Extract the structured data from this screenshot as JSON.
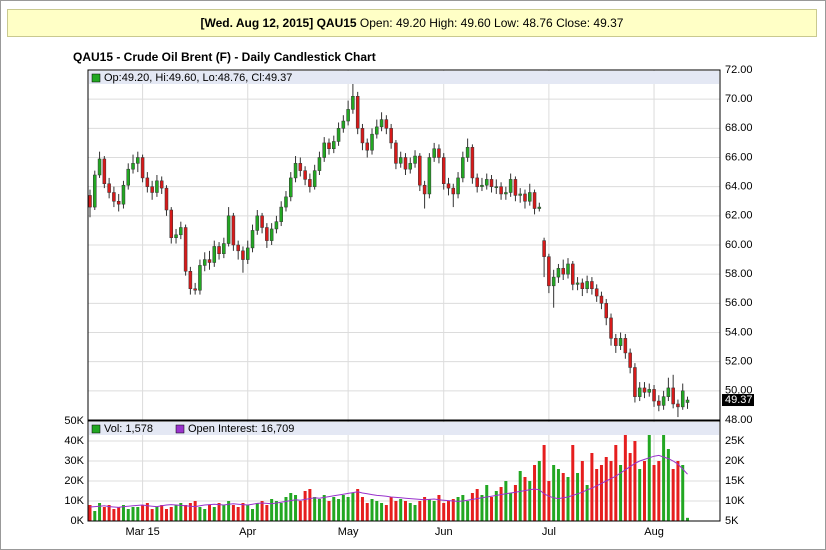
{
  "header": {
    "date": "[Wed. Aug 12, 2015] QAU15",
    "ohlc": "Open: 49.20 High: 49.60 Low: 48.76 Close: 49.37"
  },
  "chart_data": [
    {
      "type": "candlestick",
      "title": "QAU15 - Crude Oil Brent (F) - Daily Candlestick Chart",
      "legend_text": "Op:49.20, Hi:49.60, Lo:48.76, Cl:49.37",
      "up_color": "#22a722",
      "down_color": "#d61a1a",
      "grid": true,
      "ylim": [
        48,
        72
      ],
      "yticks": [
        {
          "value": 48,
          "label": "48.00"
        },
        {
          "value": 50,
          "label": "50.00"
        },
        {
          "value": 52,
          "label": "52.00"
        },
        {
          "value": 54,
          "label": "54.00"
        },
        {
          "value": 56,
          "label": "56.00"
        },
        {
          "value": 58,
          "label": "58.00"
        },
        {
          "value": 60,
          "label": "60.00"
        },
        {
          "value": 62,
          "label": "62.00"
        },
        {
          "value": 64,
          "label": "64.00"
        },
        {
          "value": 66,
          "label": "66.00"
        },
        {
          "value": 68,
          "label": "68.00"
        },
        {
          "value": 70,
          "label": "70.00"
        },
        {
          "value": 72,
          "label": "72.00"
        }
      ],
      "categories": [
        null,
        null,
        null,
        null,
        null,
        null,
        null,
        null,
        null,
        null,
        null,
        "Mar 15",
        null,
        null,
        null,
        null,
        null,
        null,
        null,
        null,
        null,
        null,
        null,
        null,
        null,
        null,
        null,
        null,
        null,
        null,
        null,
        null,
        null,
        "Apr",
        null,
        null,
        null,
        null,
        null,
        null,
        null,
        null,
        null,
        null,
        null,
        null,
        null,
        null,
        null,
        null,
        null,
        null,
        null,
        null,
        "May",
        null,
        null,
        null,
        null,
        null,
        null,
        null,
        null,
        null,
        null,
        null,
        null,
        null,
        null,
        null,
        null,
        null,
        null,
        null,
        "Jun",
        null,
        null,
        null,
        null,
        null,
        null,
        null,
        null,
        null,
        null,
        null,
        null,
        null,
        null,
        null,
        null,
        null,
        null,
        null,
        null,
        null,
        "Jul",
        null,
        null,
        null,
        null,
        null,
        null,
        null,
        null,
        null,
        null,
        null,
        null,
        null,
        null,
        null,
        null,
        null,
        null,
        null,
        null,
        null,
        "Aug",
        null,
        null,
        null,
        null,
        null,
        null,
        null
      ],
      "open": [
        63.4,
        62.6,
        64.8,
        65.9,
        64.2,
        63.6,
        63.0,
        62.8,
        64.1,
        65.2,
        65.6,
        66.0,
        64.6,
        64.0,
        63.6,
        64.4,
        63.9,
        62.4,
        60.5,
        60.7,
        61.2,
        58.2,
        57.0,
        56.9,
        58.6,
        59.0,
        58.8,
        59.9,
        59.4,
        60.1,
        62.0,
        60.0,
        59.6,
        59.0,
        59.8,
        61.0,
        62.0,
        61.2,
        60.3,
        61.1,
        61.6,
        62.6,
        63.3,
        64.6,
        65.6,
        65.1,
        64.5,
        64.0,
        65.1,
        66.0,
        67.0,
        66.6,
        67.1,
        68.0,
        68.5,
        69.3,
        70.2,
        68.0,
        67.0,
        66.5,
        67.6,
        68.1,
        68.6,
        68.0,
        67.0,
        65.6,
        66.0,
        65.2,
        65.6,
        66.1,
        64.1,
        63.5,
        66.0,
        66.6,
        66.0,
        64.2,
        63.9,
        63.5,
        64.6,
        66.0,
        66.7,
        64.6,
        64.0,
        64.1,
        64.5,
        64.0,
        64.0,
        63.5,
        63.6,
        64.5,
        63.4,
        63.5,
        63.0,
        63.6,
        62.5,
        60.3,
        59.2,
        57.2,
        57.8,
        58.4,
        58.0,
        58.7,
        57.3,
        57.4,
        57.0,
        57.5,
        57.0,
        56.5,
        56.0,
        55.0,
        53.6,
        53.1,
        53.6,
        52.6,
        51.6,
        49.6,
        50.2,
        49.9,
        50.1,
        49.3,
        49.0,
        49.6,
        50.2,
        49.1,
        48.9,
        49.2
      ],
      "high": [
        63.8,
        65.1,
        66.4,
        66.1,
        64.6,
        64.0,
        63.5,
        64.4,
        65.6,
        66.2,
        66.4,
        66.2,
        65.0,
        64.4,
        64.8,
        64.7,
        64.1,
        62.6,
        61.1,
        61.6,
        61.4,
        58.5,
        57.4,
        59.0,
        59.5,
        59.6,
        60.3,
        60.2,
        60.5,
        62.6,
        62.2,
        60.3,
        59.9,
        60.3,
        61.4,
        62.4,
        62.2,
        61.5,
        61.5,
        62.0,
        63.0,
        63.7,
        65.0,
        66.1,
        66.0,
        65.4,
        64.9,
        65.5,
        66.4,
        67.4,
        67.3,
        67.5,
        68.4,
        68.9,
        69.9,
        71.2,
        70.5,
        68.3,
        67.3,
        68.0,
        68.6,
        69.1,
        68.9,
        68.3,
        67.2,
        66.4,
        66.3,
        66.0,
        66.5,
        66.3,
        64.4,
        66.3,
        67.0,
        66.9,
        66.3,
        64.6,
        64.2,
        65.0,
        66.4,
        67.3,
        66.9,
        64.9,
        64.6,
        64.9,
        64.8,
        64.5,
        64.3,
        64.0,
        64.9,
        64.7,
        63.9,
        63.8,
        64.2,
        63.8,
        62.9,
        60.5,
        59.4,
        58.3,
        58.7,
        59.0,
        59.1,
        58.9,
        57.8,
        57.7,
        57.9,
        57.8,
        57.3,
        56.8,
        56.3,
        55.3,
        53.9,
        54.0,
        53.9,
        52.9,
        51.9,
        50.6,
        50.6,
        50.5,
        50.4,
        49.7,
        50.0,
        50.9,
        51.1,
        49.4,
        50.5,
        49.6
      ],
      "low": [
        61.9,
        62.4,
        64.6,
        63.9,
        63.2,
        62.6,
        62.3,
        62.5,
        63.8,
        64.9,
        65.0,
        64.3,
        63.6,
        63.1,
        63.3,
        63.5,
        62.0,
        60.1,
        60.1,
        60.4,
        57.9,
        56.6,
        56.6,
        56.6,
        58.2,
        58.3,
        58.5,
        59.0,
        59.1,
        59.9,
        59.6,
        59.0,
        58.1,
        58.7,
        59.5,
        60.7,
        60.8,
        59.8,
        60.0,
        60.8,
        61.3,
        62.3,
        63.0,
        64.3,
        64.7,
        64.1,
        63.6,
        63.8,
        64.8,
        65.7,
        66.2,
        66.3,
        66.8,
        67.7,
        68.2,
        69.0,
        67.6,
        66.5,
        66.0,
        66.2,
        67.3,
        67.8,
        67.6,
        66.6,
        65.2,
        65.3,
        64.8,
        64.9,
        65.3,
        63.7,
        62.5,
        63.2,
        65.7,
        65.6,
        63.8,
        63.4,
        62.6,
        63.2,
        64.3,
        65.7,
        64.2,
        63.6,
        63.7,
        63.8,
        63.6,
        63.5,
        63.1,
        63.1,
        63.3,
        63.0,
        62.9,
        62.5,
        62.7,
        62.1,
        62.3,
        57.8,
        56.7,
        55.7,
        57.4,
        57.6,
        57.7,
        56.9,
        56.9,
        56.5,
        56.7,
        56.6,
        56.1,
        55.6,
        54.5,
        53.1,
        52.6,
        52.8,
        52.2,
        51.2,
        49.2,
        49.3,
        49.5,
        49.6,
        48.9,
        48.6,
        48.7,
        49.3,
        48.8,
        48.2,
        48.7,
        48.76
      ],
      "close": [
        62.6,
        64.8,
        65.9,
        64.2,
        63.6,
        63.0,
        62.8,
        64.1,
        65.2,
        65.6,
        66.0,
        64.6,
        64.0,
        63.6,
        64.4,
        63.9,
        62.4,
        60.5,
        60.7,
        61.2,
        58.2,
        57.0,
        56.9,
        58.6,
        59.0,
        58.8,
        59.9,
        59.4,
        60.1,
        62.0,
        60.0,
        59.6,
        59.0,
        59.8,
        61.0,
        62.0,
        61.2,
        60.3,
        61.1,
        61.6,
        62.6,
        63.3,
        64.6,
        65.6,
        65.1,
        64.5,
        64.0,
        65.1,
        66.0,
        67.0,
        66.6,
        67.1,
        68.0,
        68.5,
        69.3,
        70.2,
        68.0,
        67.0,
        66.5,
        67.6,
        68.1,
        68.6,
        68.0,
        67.0,
        65.6,
        66.0,
        65.2,
        65.6,
        66.1,
        64.1,
        63.5,
        66.0,
        66.6,
        66.0,
        64.2,
        63.9,
        63.5,
        64.6,
        66.0,
        66.7,
        64.6,
        64.0,
        64.1,
        64.5,
        64.0,
        64.0,
        63.5,
        63.6,
        64.5,
        63.4,
        63.5,
        63.0,
        63.6,
        62.5,
        62.6,
        59.2,
        57.2,
        57.8,
        58.4,
        58.0,
        58.7,
        57.3,
        57.4,
        57.0,
        57.5,
        57.0,
        56.5,
        56.0,
        55.0,
        53.6,
        53.1,
        53.6,
        52.6,
        51.6,
        49.6,
        50.2,
        49.9,
        50.1,
        49.3,
        49.0,
        49.6,
        50.2,
        49.1,
        48.9,
        50.0,
        49.37
      ]
    },
    {
      "type": "bar",
      "up_color": "#22a722",
      "down_color": "#e61e1e",
      "grid": true,
      "ylim": [
        0,
        50000
      ],
      "yticks": [
        {
          "value": 0,
          "label": "0K"
        },
        {
          "value": 10000,
          "label": "10K"
        },
        {
          "value": 20000,
          "label": "20K"
        },
        {
          "value": 30000,
          "label": "30K"
        },
        {
          "value": 40000,
          "label": "40K"
        },
        {
          "value": 50000,
          "label": "50K"
        }
      ],
      "y2lim": [
        5000,
        30000
      ],
      "y2ticks": [
        {
          "value": 5000,
          "label": "5K"
        },
        {
          "value": 10000,
          "label": "10K"
        },
        {
          "value": 15000,
          "label": "15K"
        },
        {
          "value": 20000,
          "label": "20K"
        },
        {
          "value": 25000,
          "label": "25K"
        }
      ],
      "series": [
        {
          "name": "Vol: 1,578",
          "color": "#22a722",
          "values": [
            8000,
            5000,
            9000,
            7000,
            8000,
            6000,
            7000,
            8000,
            6000,
            7000,
            7000,
            8000,
            9000,
            6000,
            7000,
            8000,
            6000,
            7000,
            8000,
            9000,
            8000,
            9000,
            10000,
            7000,
            6000,
            8000,
            7000,
            9000,
            8000,
            10000,
            8000,
            7000,
            9000,
            8000,
            6000,
            9000,
            10000,
            8000,
            11000,
            10000,
            9000,
            12000,
            14000,
            13000,
            10000,
            15000,
            16000,
            12000,
            11000,
            13000,
            10000,
            12000,
            11000,
            13000,
            12000,
            14000,
            16000,
            12000,
            9000,
            11000,
            10000,
            9000,
            8000,
            12000,
            10000,
            11000,
            10000,
            9000,
            8000,
            10000,
            12000,
            11000,
            10000,
            13000,
            9000,
            10000,
            11000,
            12000,
            13000,
            10000,
            14000,
            16000,
            13000,
            18000,
            12000,
            15000,
            17000,
            20000,
            14000,
            18000,
            25000,
            22000,
            20000,
            28000,
            30000,
            38000,
            20000,
            28000,
            26000,
            24000,
            22000,
            38000,
            24000,
            30000,
            18000,
            34000,
            26000,
            28000,
            32000,
            30000,
            38000,
            28000,
            48000,
            34000,
            40000,
            26000,
            30000,
            46000,
            28000,
            30000,
            44000,
            36000,
            26000,
            30000,
            28000,
            1578
          ]
        },
        {
          "name": "Open Interest: 16,709",
          "color": "#9933cc",
          "axis": "y2",
          "values": [
            8500,
            8600,
            8700,
            8800,
            8600,
            8500,
            8400,
            8600,
            8700,
            8800,
            8900,
            9000,
            8800,
            8700,
            8600,
            8800,
            9000,
            9100,
            9000,
            8900,
            8800,
            8700,
            8600,
            8800,
            9000,
            9100,
            9200,
            9100,
            9000,
            9200,
            9300,
            9200,
            9100,
            9000,
            9200,
            9400,
            9500,
            9400,
            9300,
            9500,
            9700,
            9900,
            10100,
            10300,
            10200,
            10400,
            10600,
            10800,
            10700,
            10900,
            11100,
            11300,
            11500,
            11700,
            11900,
            12100,
            12300,
            12000,
            11800,
            11600,
            11400,
            11300,
            11200,
            11000,
            10900,
            10800,
            10700,
            10600,
            10500,
            10400,
            10300,
            10400,
            10500,
            10300,
            10200,
            10100,
            10000,
            9900,
            10000,
            10200,
            10400,
            10600,
            10800,
            11000,
            11200,
            11400,
            11600,
            11800,
            12000,
            12200,
            12400,
            12600,
            12800,
            13000,
            12800,
            11800,
            11200,
            10800,
            10600,
            10800,
            11000,
            11400,
            11800,
            12200,
            12800,
            13200,
            13800,
            14400,
            15000,
            15600,
            16200,
            17000,
            17800,
            18600,
            19400,
            20000,
            20400,
            20800,
            21200,
            21400,
            21000,
            20600,
            20000,
            19200,
            18000,
            16709
          ]
        }
      ]
    }
  ]
}
